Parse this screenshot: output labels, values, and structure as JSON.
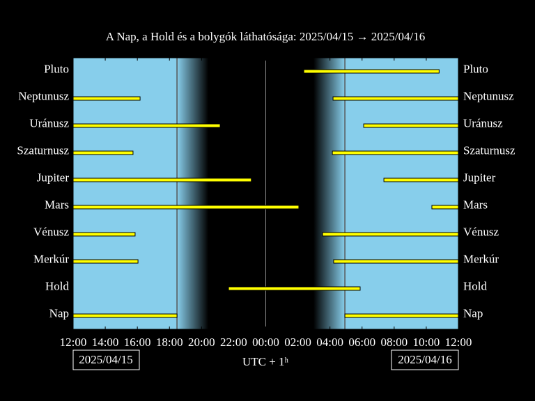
{
  "chart_data": {
    "type": "timeline",
    "title": "A Nap, a Hold és a bolygók láthatósága: 2025/04/15 → 2025/04/16",
    "xlabel": "UTC + 1ʰ",
    "start_date": "2025/04/15",
    "end_date": "2025/04/16",
    "xlim": [
      12,
      36
    ],
    "xticks": [
      {
        "value": 12,
        "label": "12:00"
      },
      {
        "value": 14,
        "label": "14:00"
      },
      {
        "value": 16,
        "label": "16:00"
      },
      {
        "value": 18,
        "label": "18:00"
      },
      {
        "value": 20,
        "label": "20:00"
      },
      {
        "value": 22,
        "label": "22:00"
      },
      {
        "value": 24,
        "label": "00:00"
      },
      {
        "value": 26,
        "label": "02:00"
      },
      {
        "value": 28,
        "label": "04:00"
      },
      {
        "value": 30,
        "label": "06:00"
      },
      {
        "value": 32,
        "label": "08:00"
      },
      {
        "value": 34,
        "label": "10:00"
      },
      {
        "value": 36,
        "label": "12:00"
      }
    ],
    "reference_lines": [
      24
    ],
    "day_color": "#87ceeb",
    "night_color": "#000000",
    "bar_color": "#ffff00",
    "series": [
      {
        "name": "Pluto",
        "segments": [
          [
            26.37,
            34.8
          ]
        ]
      },
      {
        "name": "Neptunusz",
        "segments": [
          [
            12,
            16.17
          ],
          [
            28.19,
            36
          ]
        ]
      },
      {
        "name": "Uránusz",
        "segments": [
          [
            12,
            21.16
          ],
          [
            30.1,
            36
          ]
        ]
      },
      {
        "name": "Szaturnusz",
        "segments": [
          [
            12,
            15.73
          ],
          [
            28.15,
            36
          ]
        ]
      },
      {
        "name": "Jupiter",
        "segments": [
          [
            12,
            23.1
          ],
          [
            31.36,
            36
          ]
        ]
      },
      {
        "name": "Mars",
        "segments": [
          [
            12,
            26.06
          ],
          [
            34.35,
            36
          ]
        ]
      },
      {
        "name": "Vénusz",
        "segments": [
          [
            12,
            15.86
          ],
          [
            27.54,
            36
          ]
        ]
      },
      {
        "name": "Merkúr",
        "segments": [
          [
            12,
            16.04
          ],
          [
            28.23,
            36
          ]
        ]
      },
      {
        "name": "Hold",
        "segments": [
          [
            21.68,
            29.88
          ]
        ]
      },
      {
        "name": "Nap",
        "segments": [
          [
            12,
            18.47
          ],
          [
            28.93,
            36
          ]
        ]
      }
    ]
  }
}
